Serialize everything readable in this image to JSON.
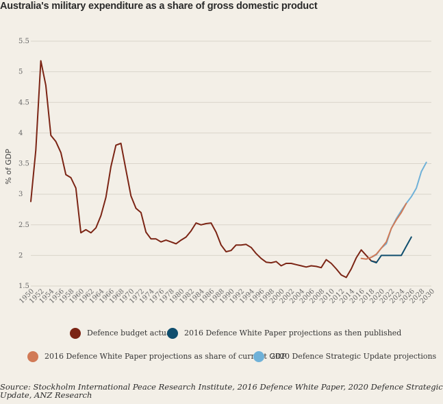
{
  "chart_data": {
    "type": "line",
    "title": "Australia's military expenditure as a share of gross domestic product",
    "ylabel": "% of GDP",
    "xlabel": "",
    "ylim": [
      1.5,
      5.5
    ],
    "xlim": [
      1950,
      2030
    ],
    "y_ticks": [
      "1.5",
      "2",
      "2.5",
      "3",
      "3.5",
      "4",
      "4.5",
      "5",
      "5.5"
    ],
    "x_ticks": [
      "1950",
      "1952",
      "1954",
      "1956",
      "1958",
      "1960",
      "1962",
      "1964",
      "1966",
      "1968",
      "1970",
      "1972",
      "1974",
      "1976",
      "1978",
      "1980",
      "1982",
      "1984",
      "1986",
      "1988",
      "1990",
      "1992",
      "1994",
      "1996",
      "1998",
      "2000",
      "2002",
      "2004",
      "2006",
      "2008",
      "2010",
      "2012",
      "2014",
      "2016",
      "2018",
      "2020",
      "2022",
      "2024",
      "2026",
      "2028",
      "2030"
    ],
    "grid": true,
    "legend_position": "bottom",
    "series": [
      {
        "name": "Defence budget actual",
        "color": "#7b2414",
        "x": [
          1950,
          1951,
          1952,
          1953,
          1954,
          1955,
          1956,
          1957,
          1958,
          1959,
          1960,
          1961,
          1962,
          1963,
          1964,
          1965,
          1966,
          1967,
          1968,
          1969,
          1970,
          1971,
          1972,
          1973,
          1974,
          1975,
          1976,
          1977,
          1978,
          1979,
          1980,
          1981,
          1982,
          1983,
          1984,
          1985,
          1986,
          1987,
          1988,
          1989,
          1990,
          1991,
          1992,
          1993,
          1994,
          1995,
          1996,
          1997,
          1998,
          1999,
          2000,
          2001,
          2002,
          2003,
          2004,
          2005,
          2006,
          2007,
          2008,
          2009,
          2010,
          2011,
          2012,
          2013,
          2014,
          2015,
          2016,
          2017,
          2018,
          2019
        ],
        "values": [
          2.88,
          3.72,
          5.18,
          4.78,
          3.96,
          3.86,
          3.68,
          3.32,
          3.27,
          3.1,
          2.37,
          2.42,
          2.37,
          2.45,
          2.65,
          2.95,
          3.45,
          3.8,
          3.83,
          3.4,
          2.97,
          2.77,
          2.7,
          2.38,
          2.27,
          2.27,
          2.22,
          2.25,
          2.22,
          2.19,
          2.25,
          2.3,
          2.4,
          2.53,
          2.5,
          2.52,
          2.53,
          2.38,
          2.17,
          2.06,
          2.08,
          2.17,
          2.17,
          2.18,
          2.13,
          2.03,
          1.95,
          1.89,
          1.88,
          1.9,
          1.83,
          1.87,
          1.87,
          1.85,
          1.83,
          1.81,
          1.83,
          1.82,
          1.8,
          1.93,
          1.87,
          1.78,
          1.68,
          1.64,
          1.78,
          1.96,
          2.09,
          2.0,
          1.91,
          1.89
        ]
      },
      {
        "name": "2016 Defence White Paper projections as then published",
        "color": "#0f4e6e",
        "x": [
          2018,
          2019,
          2020,
          2021,
          2022,
          2023,
          2024,
          2025,
          2026
        ],
        "values": [
          1.91,
          1.88,
          2.0,
          2.0,
          2.0,
          2.0,
          2.0,
          2.15,
          2.3
        ]
      },
      {
        "name": "2016 Defence White Paper projections as share of current GDP",
        "color": "#d17a56",
        "x": [
          2016,
          2017,
          2018,
          2019,
          2020,
          2021,
          2022,
          2023,
          2024,
          2025
        ],
        "values": [
          1.95,
          1.94,
          1.97,
          2.02,
          2.12,
          2.22,
          2.44,
          2.58,
          2.7,
          2.85
        ]
      },
      {
        "name": "2020 Defence Strategic Update projections",
        "color": "#6fb1d8",
        "x": [
          2017,
          2018,
          2019,
          2020,
          2021,
          2022,
          2023,
          2024,
          2025,
          2026,
          2027,
          2028,
          2029
        ],
        "values": [
          1.94,
          1.97,
          2.01,
          2.12,
          2.19,
          2.44,
          2.6,
          2.73,
          2.85,
          2.96,
          3.1,
          3.37,
          3.52
        ]
      }
    ]
  },
  "source": "Source: Stockholm International Peace Research Institute, 2016 Defence White Paper, 2020 Defence Strategic Update, ANZ Research"
}
